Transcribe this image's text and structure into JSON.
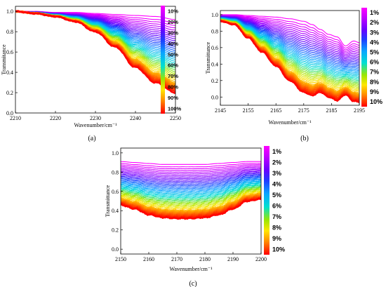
{
  "chart_data": [
    {
      "type": "line",
      "panel_label": "(a)",
      "xlabel": "Wavenumber/cm⁻¹",
      "ylabel": "Transmitance",
      "xlim": [
        2210,
        2250
      ],
      "ylim": [
        0.0,
        1.05
      ],
      "xticks": [
        2210,
        2220,
        2230,
        2240,
        2250
      ],
      "yticks": [
        0.0,
        0.2,
        0.4,
        0.6,
        0.8,
        1.0
      ],
      "ytick_labels": [
        "0.0",
        "0.2",
        "0.4",
        "0.6",
        "0.8",
        "1.0"
      ],
      "legend": {
        "placement": "right",
        "type": "colorbar",
        "labels": [
          "10%",
          "20%",
          "30%",
          "40%",
          "50%",
          "60%",
          "70%",
          "80%",
          "90%",
          "100%"
        ]
      },
      "series_count": 40,
      "series_envelope": {
        "x": [
          2210,
          2215,
          2220,
          2225,
          2230,
          2235,
          2240,
          2245,
          2250
        ],
        "top_curve": [
          1.0,
          1.0,
          0.99,
          0.99,
          0.98,
          0.97,
          0.96,
          0.95,
          0.92
        ],
        "bottom_curve": [
          1.0,
          0.98,
          0.95,
          0.9,
          0.8,
          0.65,
          0.45,
          0.3,
          0.2
        ]
      }
    },
    {
      "type": "line",
      "panel_label": "(b)",
      "xlabel": "Wavenumber/cm⁻¹",
      "ylabel": "Transmittance",
      "xlim": [
        2145,
        2195
      ],
      "ylim": [
        -0.1,
        1.05
      ],
      "xticks": [
        2145,
        2155,
        2165,
        2175,
        2185,
        2195
      ],
      "yticks": [
        0.0,
        0.2,
        0.4,
        0.6,
        0.8,
        1.0
      ],
      "ytick_labels": [
        "0.0",
        "0.2",
        "0.4",
        "0.6",
        "0.8",
        "1.0"
      ],
      "legend": {
        "placement": "right",
        "type": "colorbar",
        "labels": [
          "1%",
          "2%",
          "3%",
          "4%",
          "5%",
          "6%",
          "7%",
          "8%",
          "9%",
          "10%"
        ]
      },
      "series_count": 40,
      "series_envelope": {
        "x": [
          2145,
          2150,
          2155,
          2160,
          2165,
          2170,
          2175,
          2178,
          2181,
          2184,
          2187,
          2190,
          2193,
          2195
        ],
        "top_curve": [
          1.0,
          1.0,
          0.99,
          0.98,
          0.97,
          0.95,
          0.92,
          0.88,
          0.82,
          0.76,
          0.73,
          0.62,
          0.68,
          0.66
        ],
        "bottom_curve": [
          0.92,
          0.88,
          0.72,
          0.55,
          0.38,
          0.2,
          0.06,
          0.02,
          0.06,
          0.0,
          -0.04,
          0.03,
          -0.05,
          -0.06
        ]
      }
    },
    {
      "type": "line",
      "panel_label": "(c)",
      "xlabel": "Wavenumber/cm⁻¹",
      "ylabel": "Transmittance",
      "xlim": [
        2150,
        2200
      ],
      "ylim": [
        -0.05,
        1.05
      ],
      "xticks": [
        2150,
        2160,
        2170,
        2180,
        2190,
        2200
      ],
      "yticks": [
        0.0,
        0.2,
        0.4,
        0.6,
        0.8,
        1.0
      ],
      "ytick_labels": [
        "0.0",
        "0.2",
        "0.4",
        "0.6",
        "0.8",
        "1.0"
      ],
      "legend": {
        "placement": "right",
        "type": "colorbar",
        "labels": [
          "1%",
          "2%",
          "3%",
          "4%",
          "5%",
          "6%",
          "7%",
          "8%",
          "9%",
          "10%"
        ]
      },
      "series_count": 40,
      "series_envelope": {
        "x": [
          2150,
          2155,
          2160,
          2165,
          2170,
          2175,
          2180,
          2185,
          2190,
          2195,
          2200
        ],
        "top_curve": [
          0.91,
          0.9,
          0.89,
          0.88,
          0.88,
          0.88,
          0.88,
          0.89,
          0.9,
          0.91,
          0.91
        ],
        "bottom_curve": [
          0.46,
          0.42,
          0.36,
          0.33,
          0.32,
          0.32,
          0.33,
          0.36,
          0.42,
          0.5,
          0.52
        ]
      }
    }
  ]
}
